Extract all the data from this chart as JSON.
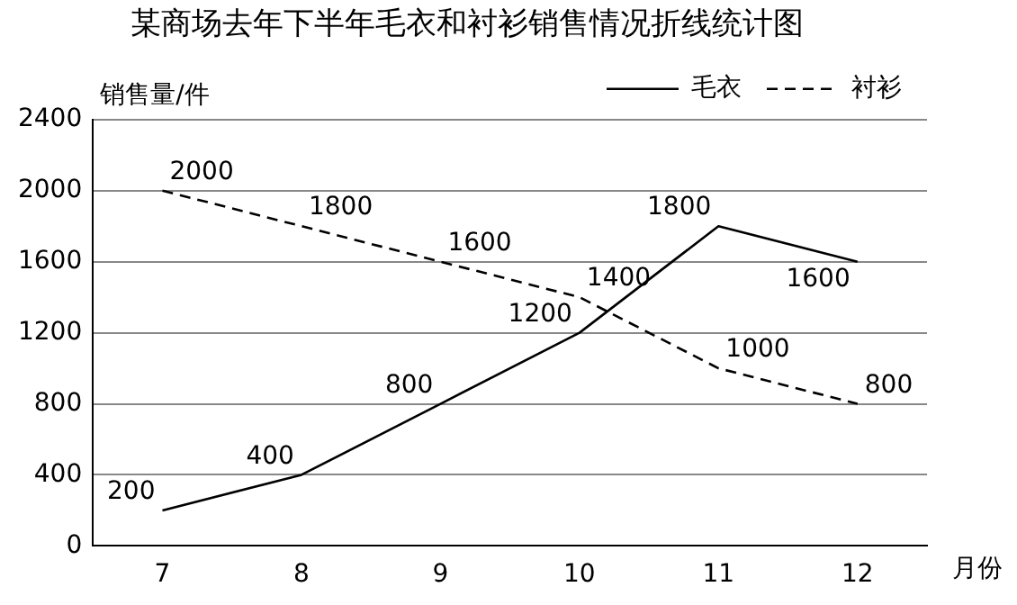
{
  "chart_data": {
    "type": "line",
    "title": "某商场去年下半年毛衣和衬衫销售情况折线统计图",
    "ylabel": "销售量/件",
    "xlabel": "月份",
    "categories": [
      "7",
      "8",
      "9",
      "10",
      "11",
      "12"
    ],
    "series": [
      {
        "name": "毛衣",
        "color": "#000000",
        "line_style": "solid",
        "values": [
          200,
          400,
          800,
          1200,
          1800,
          1600
        ]
      },
      {
        "name": "衬衫",
        "color": "#000000",
        "line_style": "dashed",
        "values": [
          2000,
          1800,
          1600,
          1400,
          1000,
          800
        ]
      }
    ],
    "ylim": [
      0,
      2400
    ],
    "yticks": [
      0,
      400,
      800,
      1200,
      1600,
      2000,
      2400
    ],
    "grid": "y",
    "legend": "top right",
    "marker": "none",
    "data_labels": true
  }
}
